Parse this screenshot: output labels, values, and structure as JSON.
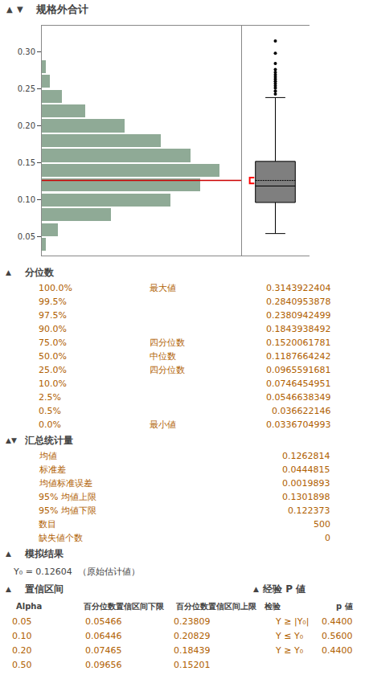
{
  "chart_data": [
    {
      "type": "histogram",
      "title": "规格外合计",
      "title_symbols": [
        "▲",
        "▼"
      ],
      "orientation": "horizontal",
      "bins": [
        0.03,
        0.05,
        0.07,
        0.09,
        0.11,
        0.13,
        0.15,
        0.17,
        0.19,
        0.21,
        0.23,
        0.25,
        0.27,
        0.29
      ],
      "values": [
        2,
        8,
        35,
        65,
        80,
        90,
        75,
        60,
        42,
        22,
        10,
        4,
        2
      ],
      "color": "#8faa96",
      "xlim": [
        0,
        100.8
      ],
      "ylim": [
        0.025,
        0.335
      ],
      "yticks": [
        0.05,
        {
          "value": 0.1,
          "label": "0.10"
        },
        0.15,
        {
          "value": 0.2,
          "label": "0.20"
        },
        0.25,
        {
          "value": 0.3,
          "label": "0.30"
        }
      ],
      "tick_labels": "y",
      "grid": false,
      "mean_line": {
        "value": 0.1262814,
        "color": "#cc0000"
      },
      "box": {
        "q1": 0.0965591681,
        "median": 0.1187664242,
        "q3": 0.1520061781,
        "whisker_low": 0.0546638349,
        "whisker_high": 0.2380942499,
        "mean": 0.1262814,
        "outliers": [
          0.243,
          0.247,
          0.251,
          0.254,
          0.257,
          0.26,
          0.263,
          0.266,
          0.269,
          0.272,
          0.276,
          0.284,
          0.298,
          0.3143922404
        ],
        "color": "#000000",
        "ci": {
          "lo": 0.122373,
          "hi": 0.1301898,
          "color": "#ff0000"
        }
      }
    },
    {
      "type": "table",
      "title": "分位数",
      "symbol": "▲",
      "color": "#b06000",
      "rows": [
        [
          "100.0%",
          "最大値",
          "0.3143922404"
        ],
        [
          "99.5%",
          null,
          "0.2840953878"
        ],
        [
          "97.5%",
          null,
          "0.2380942499"
        ],
        [
          "90.0%",
          null,
          "0.1843938492"
        ],
        [
          "75.0%",
          "四分位数",
          "0.1520061781"
        ],
        [
          "50.0%",
          "中位数",
          "0.1187664242"
        ],
        [
          "25.0%",
          "四分位数",
          "0.0965591681"
        ],
        [
          "10.0%",
          null,
          "0.0746454951"
        ],
        [
          "2.5%",
          null,
          "0.0546638349"
        ],
        [
          "0.5%",
          null,
          "0.036622146"
        ],
        [
          "0.0%",
          "最小値",
          "0.0336704993"
        ]
      ]
    },
    {
      "type": "table",
      "title": "汇总统计量",
      "symbol": "▲▼",
      "color": "#b06000",
      "rows": [
        [
          "均値",
          "0.1262814"
        ],
        [
          "标准差",
          "0.0444815"
        ],
        [
          "均値标准误差",
          "0.0019893"
        ],
        [
          "95% 均値上限",
          "0.1301898"
        ],
        [
          "95% 均値下限",
          "0.122373"
        ],
        [
          "数目",
          "500"
        ],
        [
          "缺失値个数",
          "0"
        ]
      ]
    },
    {
      "type": "table",
      "title": "模拟结果",
      "symbol": "▲",
      "subtitle": "Y₀ = 0.12604  （原始估计値）",
      "sections": [
        {
          "title": "置信区间",
          "symbol": "▲"
        },
        {
          "title": "经验 P 値",
          "symbol": "▲"
        }
      ],
      "columns": [
        "Alpha",
        "百分位数置信区间下限",
        "百分位数置信区间上限",
        "检验",
        "p 値"
      ],
      "color": "#b06000",
      "rows": [
        [
          "0.05",
          "0.05466",
          "0.23809",
          "Y ≥ |Y₀|",
          "0.4400"
        ],
        [
          "0.10",
          "0.06446",
          "0.20829",
          "Y ≤ Y₀",
          "0.5600"
        ],
        [
          "0.20",
          "0.07465",
          "0.18439",
          "Y ≥ Y₀",
          "0.4400"
        ],
        [
          "0.50",
          "0.09656",
          "0.15201",
          null,
          null
        ]
      ]
    }
  ]
}
